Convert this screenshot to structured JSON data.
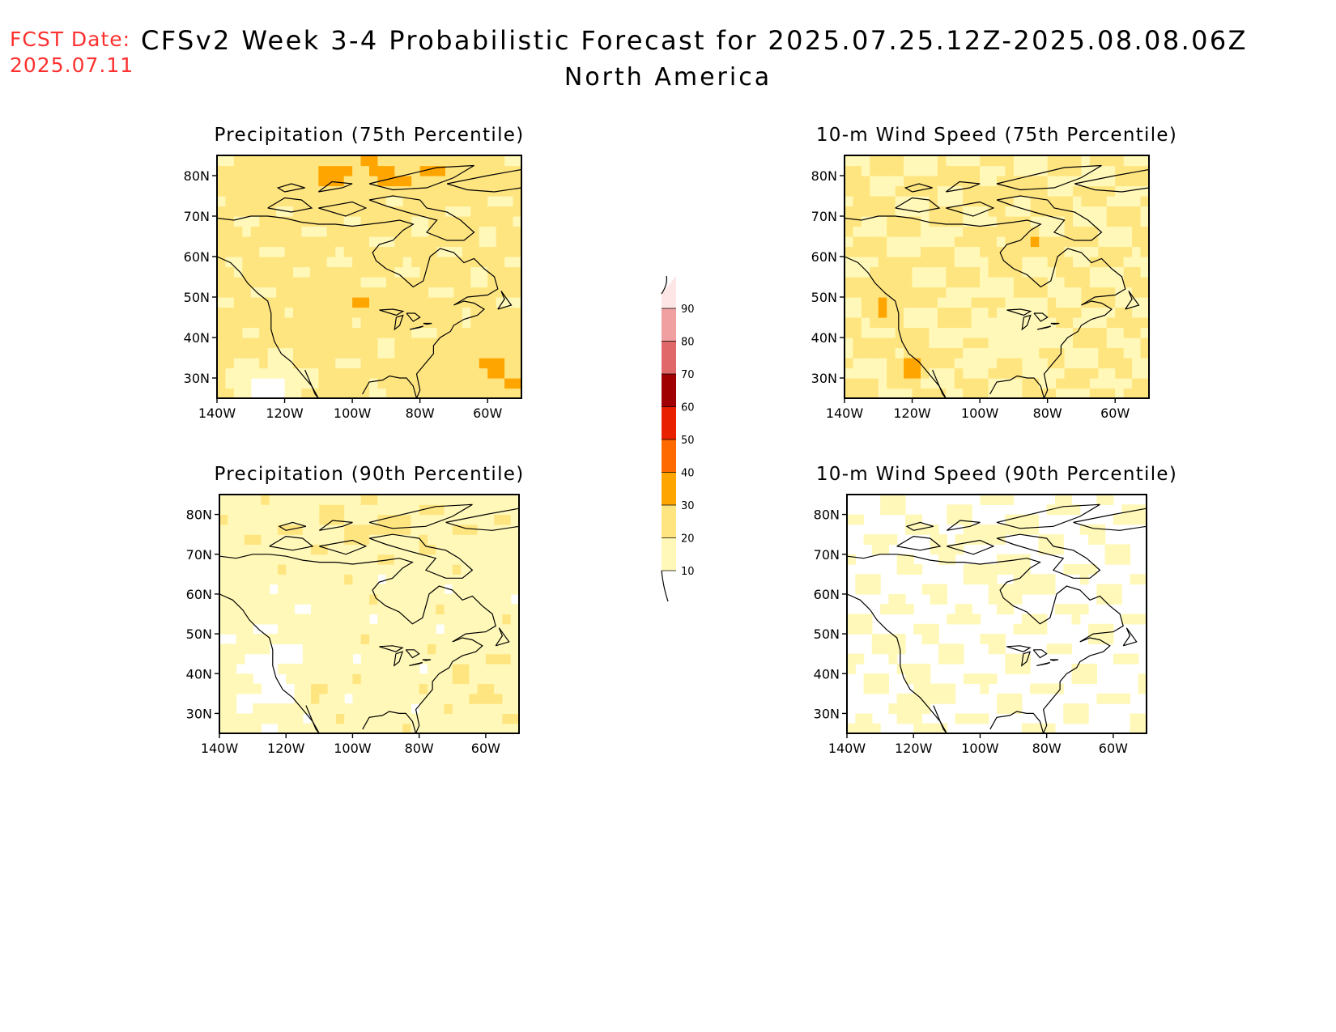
{
  "header": {
    "fcst_label": "FCST Date:",
    "fcst_date": "2025.07.11",
    "title": "CFSv2 Week 3-4 Probabilistic Forecast for 2025.07.25.12Z-2025.08.08.06Z",
    "region": "North America"
  },
  "panels": [
    {
      "title": "Precipitation (75th Percentile)",
      "base": 2,
      "pattern": "precip75"
    },
    {
      "title": "10-m Wind Speed (75th Percentile)",
      "base": 1,
      "pattern": "wind75"
    },
    {
      "title": "Precipitation (90th Percentile)",
      "base": 1,
      "pattern": "precip90"
    },
    {
      "title": "10-m Wind Speed (90th Percentile)",
      "base": 0,
      "pattern": "wind90"
    }
  ],
  "axes": {
    "lat_labels": [
      "80N",
      "70N",
      "60N",
      "50N",
      "40N",
      "30N"
    ],
    "lat_values": [
      80,
      70,
      60,
      50,
      40,
      30
    ],
    "lon_labels": [
      "140W",
      "120W",
      "100W",
      "80W",
      "60W"
    ],
    "lon_values": [
      -140,
      -120,
      -100,
      -80,
      -60
    ],
    "lat_range": [
      25,
      85
    ],
    "lon_range": [
      -140,
      -50
    ]
  },
  "colorbar": {
    "levels": [
      "10",
      "20",
      "30",
      "40",
      "50",
      "60",
      "70",
      "80",
      "90"
    ],
    "colors": [
      "#fff8b8",
      "#ffe580",
      "#ffa500",
      "#ff6a00",
      "#e82000",
      "#a00000",
      "#e06868",
      "#f0a0a0",
      "#ffe6e6"
    ],
    "units": "%"
  },
  "colors": {
    "coastline": "#000000",
    "frame": "#000000",
    "fcst_text": "#ff3030"
  }
}
